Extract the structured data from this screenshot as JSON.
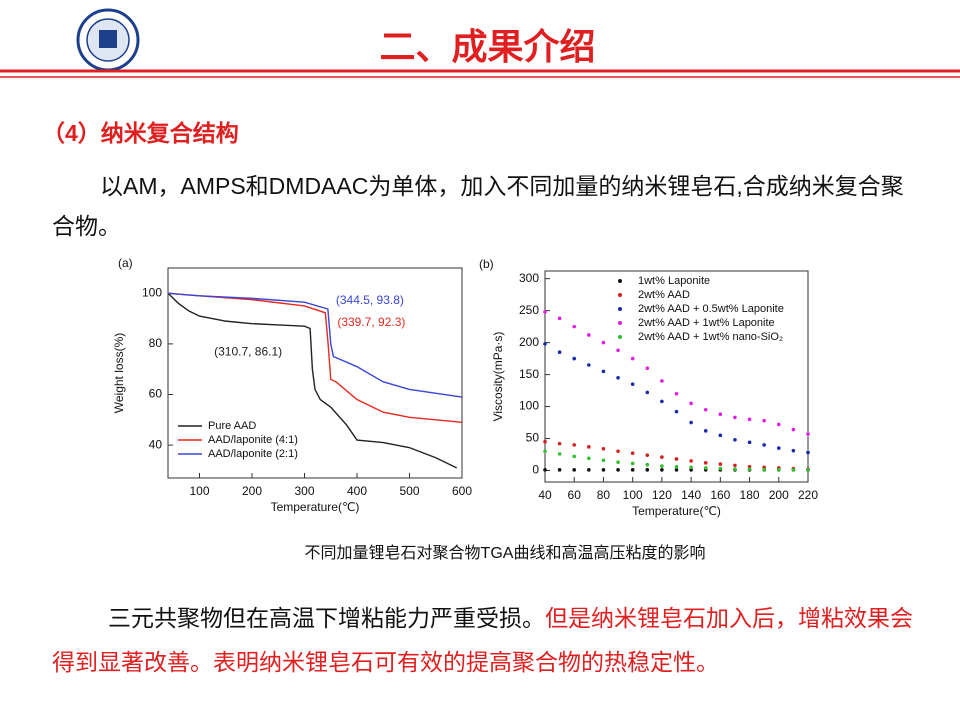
{
  "header": {
    "title": "二、成果介绍"
  },
  "section": "（4）纳米复合结构",
  "intro": "以AM，AMPS和DMDAAC为单体，加入不同加量的纳米锂皂石,合成纳米复合聚合物。",
  "caption": "不同加量锂皂石对聚合物TGA曲线和高温高压粘度的影响",
  "conclusion": {
    "plain": "三元共聚物但在高温下增粘能力严重受损。",
    "highlight": "但是纳米锂皂石加入后，增粘效果会得到显著改善。表明纳米锂皂石可有效的提高聚合物的热稳定性。"
  },
  "chart_data": [
    {
      "type": "line",
      "panel_label": "(a)",
      "x_label": "Temperature(℃)",
      "y_label": "Weight loss(%)",
      "xlim": [
        40,
        600
      ],
      "ylim": [
        27,
        110
      ],
      "xticks": [
        100,
        200,
        300,
        400,
        500,
        600
      ],
      "yticks": [
        40,
        60,
        80,
        100
      ],
      "legend": "lower left",
      "series": [
        {
          "name": "Pure AAD",
          "color": "#222222",
          "x": [
            40,
            60,
            80,
            100,
            150,
            200,
            250,
            300,
            310.7,
            315,
            320,
            330,
            350,
            380,
            400,
            450,
            500,
            550,
            590
          ],
          "values": [
            100,
            96,
            93,
            91,
            89,
            88,
            87.5,
            87,
            86.1,
            70,
            62,
            58,
            55,
            48,
            42,
            41,
            39,
            35,
            31
          ]
        },
        {
          "name": "AAD/laponite (4:1)",
          "color": "#e8281e",
          "x": [
            40,
            100,
            200,
            300,
            339.7,
            345,
            350,
            360,
            400,
            450,
            500,
            600
          ],
          "values": [
            100,
            99,
            97.5,
            95,
            92.3,
            80,
            66,
            65,
            58,
            53,
            51,
            49
          ]
        },
        {
          "name": "AAD/laponite (2:1)",
          "color": "#3a46d8",
          "x": [
            40,
            100,
            200,
            300,
            344.5,
            350,
            355,
            400,
            450,
            500,
            600
          ],
          "values": [
            100,
            99,
            98,
            96.5,
            93.8,
            80,
            75,
            71,
            65,
            62,
            59
          ]
        }
      ],
      "annotations": [
        {
          "text": "(344.5, 93.8)",
          "x": 344.5,
          "y": 93.8,
          "color": "#3a46d8"
        },
        {
          "text": "(339.7, 92.3)",
          "x": 339.7,
          "y": 92.3,
          "color": "#e8281e"
        },
        {
          "text": "(310.7, 86.1)",
          "x": 310.7,
          "y": 86.1,
          "color": "#222222"
        }
      ]
    },
    {
      "type": "scatter",
      "panel_label": "(b)",
      "x_label": "Temperature(℃)",
      "y_label": "Viscosity(mPa·s)",
      "xlim": [
        40,
        220
      ],
      "ylim": [
        -18,
        312
      ],
      "xticks": [
        40,
        60,
        80,
        100,
        120,
        140,
        160,
        180,
        200,
        220
      ],
      "yticks": [
        0,
        50,
        100,
        150,
        200,
        250,
        300
      ],
      "legend": "upper right",
      "x": [
        40,
        50,
        60,
        70,
        80,
        90,
        100,
        110,
        120,
        130,
        140,
        150,
        160,
        170,
        180,
        190,
        200,
        210,
        220
      ],
      "series": [
        {
          "name": "1wt% Laponite",
          "color": "#111111",
          "values": [
            1,
            1,
            1,
            1,
            1,
            1,
            1,
            1,
            1,
            1,
            1,
            1,
            1,
            1,
            1,
            1,
            1,
            1,
            1
          ]
        },
        {
          "name": "2wt% AAD",
          "color": "#d42020",
          "values": [
            45,
            42,
            40,
            37,
            34,
            30,
            27,
            24,
            21,
            18,
            15,
            12,
            10,
            8,
            6,
            5,
            4,
            3,
            2
          ]
        },
        {
          "name": "2wt% AAD + 0.5wt% Laponite",
          "color": "#1a2aa8",
          "values": [
            198,
            185,
            175,
            165,
            155,
            145,
            135,
            122,
            108,
            92,
            75,
            62,
            55,
            48,
            44,
            40,
            35,
            31,
            28
          ]
        },
        {
          "name": "2wt% AAD + 1wt% Laponite",
          "color": "#e020e0",
          "values": [
            248,
            238,
            225,
            212,
            200,
            188,
            175,
            160,
            140,
            120,
            105,
            95,
            88,
            83,
            80,
            78,
            72,
            64,
            57
          ]
        },
        {
          "name": "2wt% AAD + 1wt% nano-SiO₂",
          "color": "#30c030",
          "values": [
            30,
            26,
            22,
            19,
            16,
            13,
            11,
            9,
            7,
            6,
            5,
            4,
            3,
            2,
            2,
            1,
            1,
            1,
            1
          ]
        }
      ]
    }
  ]
}
